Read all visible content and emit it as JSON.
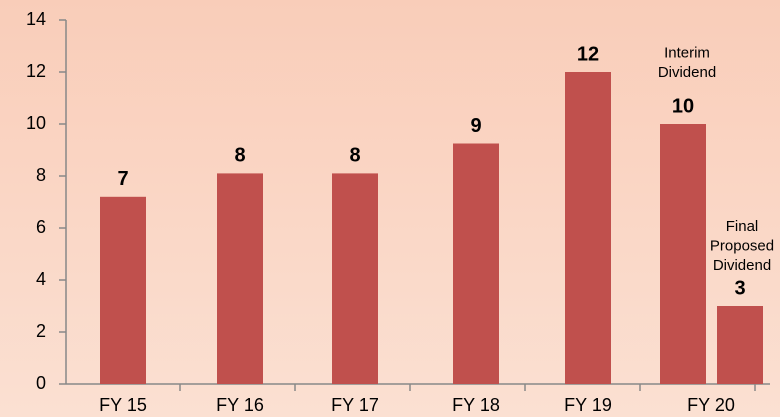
{
  "chart_data": {
    "type": "bar",
    "categories": [
      "FY 15",
      "FY 16",
      "FY 17",
      "FY 18",
      "FY 19",
      "FY 20",
      null
    ],
    "values": [
      7.2,
      8.1,
      8.1,
      9.25,
      12,
      10,
      3
    ],
    "value_labels": [
      "7",
      "8",
      "8",
      "9",
      "12",
      "10",
      "3"
    ],
    "annotations": [
      null,
      null,
      null,
      null,
      null,
      [
        "Interim",
        "Dividend"
      ],
      [
        "Final",
        "Proposed",
        "Dividend"
      ]
    ],
    "color": "#c0504d",
    "ylim": [
      0,
      14
    ],
    "yticks": [
      0,
      2,
      4,
      6,
      8,
      10,
      12,
      14
    ],
    "grid": false
  }
}
